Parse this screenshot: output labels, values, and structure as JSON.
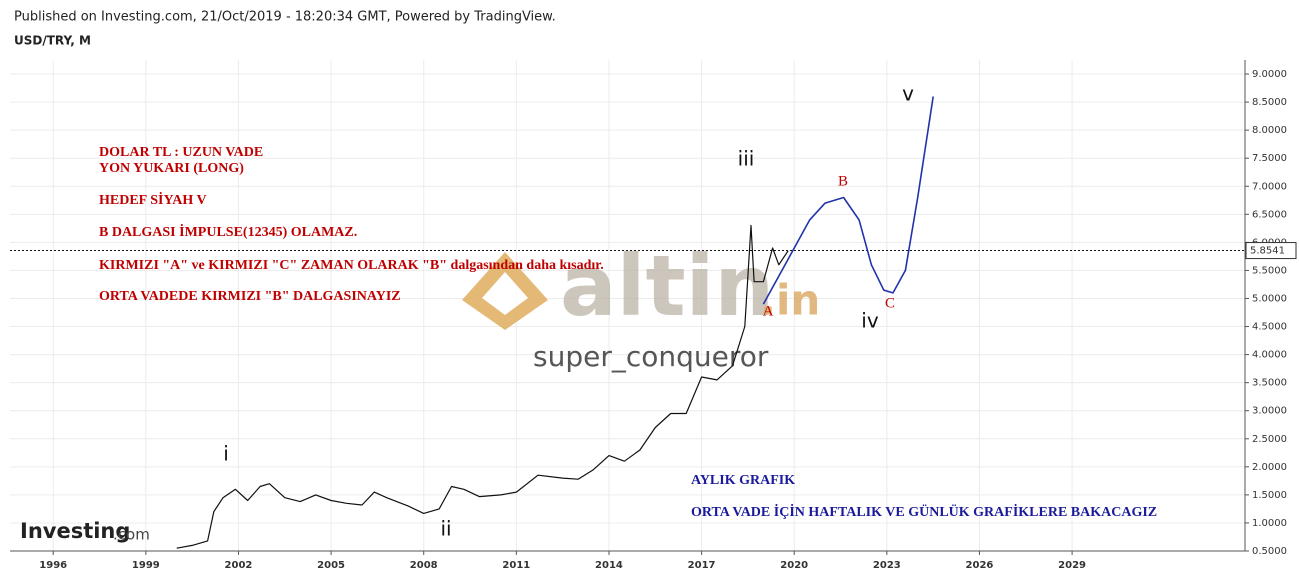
{
  "header": {
    "published": "Published on Investing.com, 21/Oct/2019 - 18:20:34 GMT, Powered by TradingView.",
    "symbol": "USD/TRY, M"
  },
  "watermark": {
    "brand": "altin",
    "domain": ".in",
    "user": "super_conqueror",
    "logo": "Investing",
    "logo_suffix": ".com"
  },
  "chart_data": {
    "type": "line",
    "xlim": [
      1994.6,
      2034.6
    ],
    "xticks": [
      1996,
      1999,
      2002,
      2005,
      2008,
      2011,
      2014,
      2017,
      2020,
      2023,
      2026,
      2029
    ],
    "ylim": [
      0.5,
      9.25
    ],
    "yticks": [
      {
        "value": 0.5,
        "label": "0.5000"
      },
      {
        "value": 1,
        "label": "1.0000"
      },
      {
        "value": 1.5,
        "label": "1.5000"
      },
      {
        "value": 2,
        "label": "2.0000"
      },
      {
        "value": 2.5,
        "label": "2.5000"
      },
      {
        "value": 3,
        "label": "3.0000"
      },
      {
        "value": 3.5,
        "label": "3.5000"
      },
      {
        "value": 4,
        "label": "4.0000"
      },
      {
        "value": 4.5,
        "label": "4.5000"
      },
      {
        "value": 5,
        "label": "5.0000"
      },
      {
        "value": 5.5,
        "label": "5.5000"
      },
      {
        "value": 6,
        "label": "6.0000"
      },
      {
        "value": 6.5,
        "label": "6.5000"
      },
      {
        "value": 7,
        "label": "7.0000"
      },
      {
        "value": 7.5,
        "label": "7.5000"
      },
      {
        "value": 8,
        "label": "8.0000"
      },
      {
        "value": 8.5,
        "label": "8.5000"
      },
      {
        "value": 9,
        "label": "9.0000"
      }
    ],
    "grid": true,
    "last_value": 5.8541,
    "series": [
      {
        "color": "#111111",
        "x": [
          2000.0,
          2000.5,
          2001.0,
          2001.2,
          2001.5,
          2001.9,
          2002.3,
          2002.7,
          2003.0,
          2003.5,
          2004.0,
          2004.5,
          2005.0,
          2005.5,
          2006.0,
          2006.4,
          2006.8,
          2007.5,
          2008.0,
          2008.5,
          2008.9,
          2009.3,
          2009.8,
          2010.5,
          2011.0,
          2011.7,
          2012.5,
          2013.0,
          2013.5,
          2014.0,
          2014.5,
          2015.0,
          2015.5,
          2016.0,
          2016.5,
          2017.0,
          2017.5,
          2018.0,
          2018.4,
          2018.6,
          2018.7,
          2019.0,
          2019.3,
          2019.5,
          2019.8
        ],
        "values": [
          0.55,
          0.6,
          0.68,
          1.2,
          1.45,
          1.6,
          1.4,
          1.65,
          1.7,
          1.45,
          1.38,
          1.5,
          1.4,
          1.35,
          1.32,
          1.55,
          1.45,
          1.3,
          1.17,
          1.25,
          1.65,
          1.6,
          1.47,
          1.5,
          1.55,
          1.85,
          1.8,
          1.78,
          1.95,
          2.2,
          2.1,
          2.3,
          2.7,
          2.95,
          2.95,
          3.6,
          3.55,
          3.8,
          4.5,
          6.3,
          5.3,
          5.3,
          5.9,
          5.6,
          5.85
        ]
      },
      {
        "color": "#2233aa",
        "x": [
          2019.0,
          2019.8,
          2020.5,
          2021.0,
          2021.6,
          2022.1,
          2022.5,
          2022.9,
          2023.2,
          2023.6,
          2024.0,
          2024.5
        ],
        "values": [
          4.9,
          5.7,
          6.4,
          6.7,
          6.8,
          6.4,
          5.6,
          5.15,
          5.1,
          5.5,
          6.8,
          8.6
        ]
      }
    ],
    "waves": {
      "labels": [
        "i",
        "ii",
        "iii",
        "iv",
        "v"
      ],
      "color": "#111111"
    },
    "corrections": {
      "labels": [
        "A",
        "B",
        "C"
      ],
      "color": "#c00000"
    },
    "notes_red": [
      "DOLAR TL : UZUN VADE",
      "YON YUKARI   (LONG)",
      "HEDEF SİYAH  V",
      "B DALGASI İMPULSE(12345) OLAMAZ.",
      "KIRMIZI \"A\" ve KIRMIZI \"C\" ZAMAN OLARAK \"B\" dalgasından daha kısadır.",
      "ORTA VADEDE  KIRMIZI \"B\" DALGASINAYIZ"
    ],
    "notes_blue": [
      "AYLIK GRAFIK",
      "ORTA VADE İÇİN HAFTALIK VE GÜNLÜK GRAFİKLERE BAKACAGIZ"
    ]
  }
}
